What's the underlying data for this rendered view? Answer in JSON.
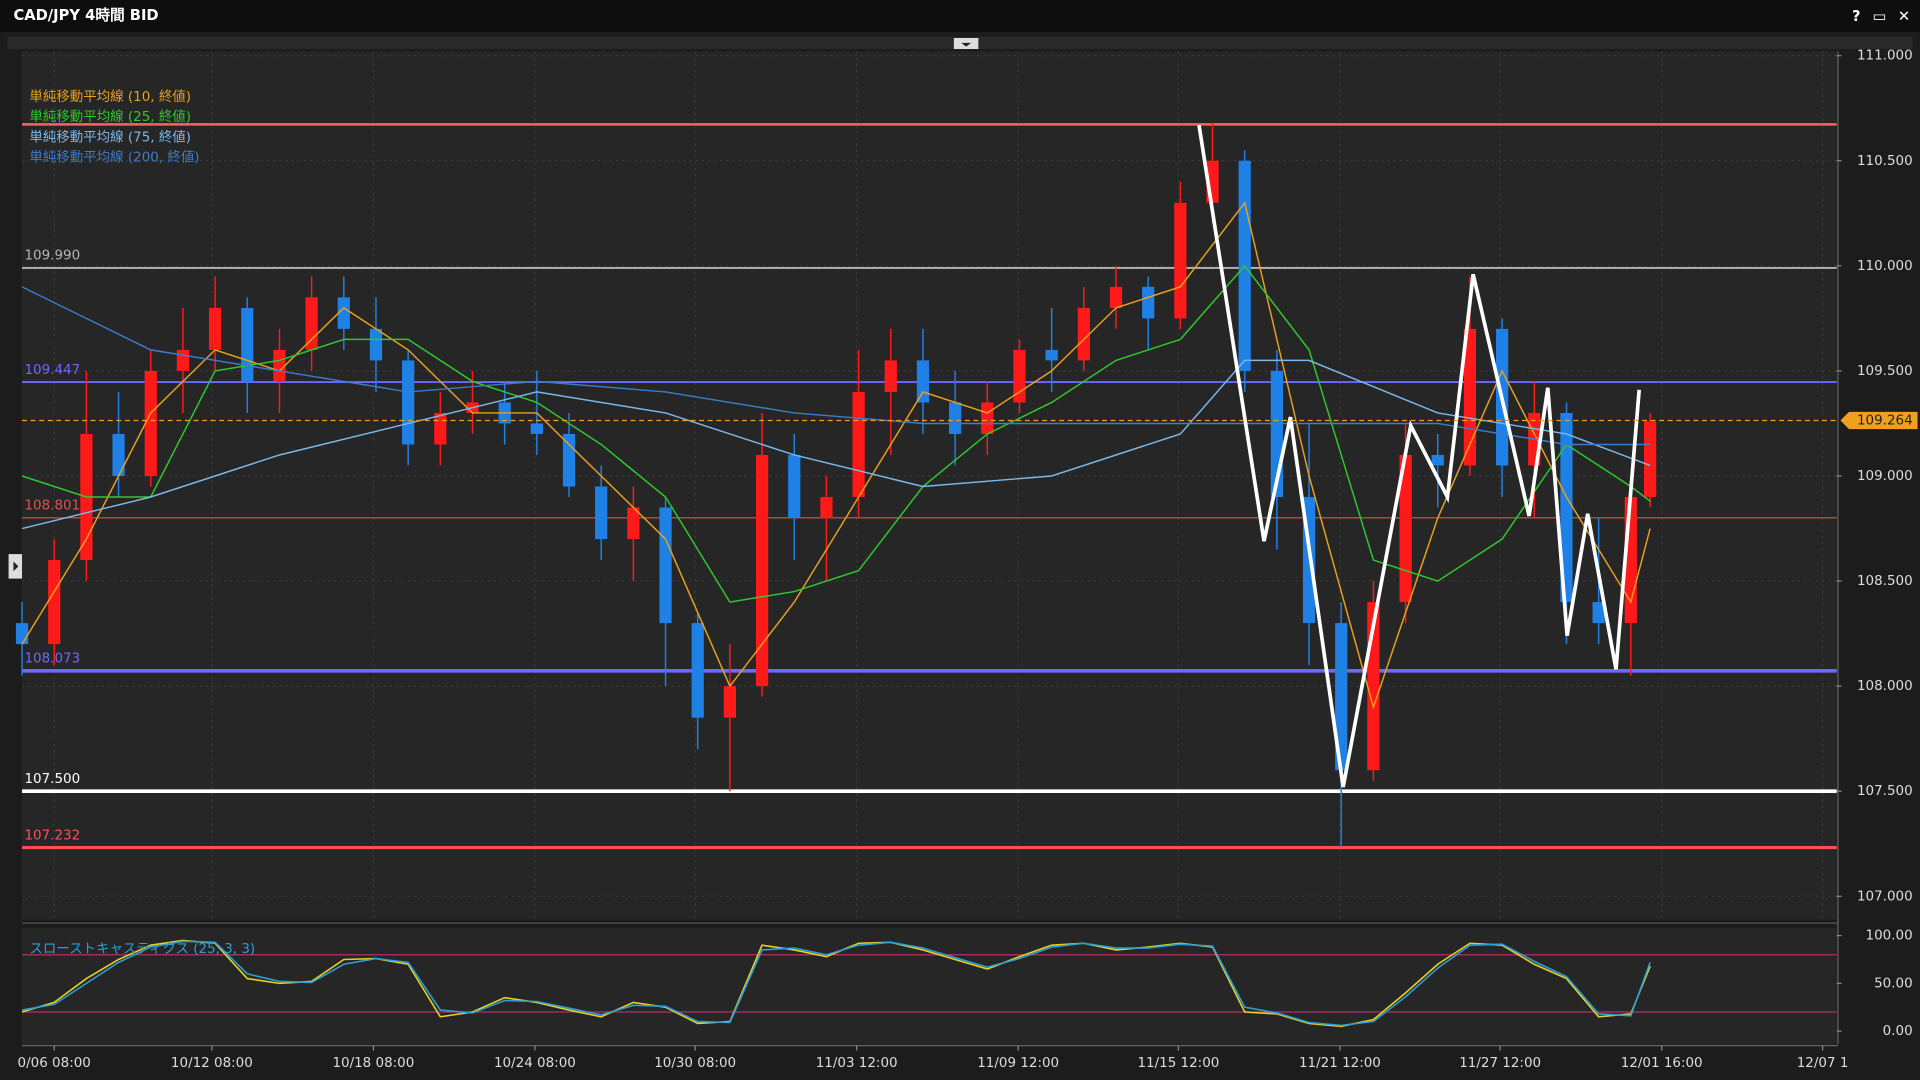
{
  "window": {
    "title": "CAD/JPY 4時間 BID",
    "buttons": [
      "?",
      "▭",
      "✕"
    ]
  },
  "chart_data": [
    {
      "type": "candlestick",
      "xlim": [
        0,
        282
      ],
      "ylim": [
        106.89,
        111.02
      ],
      "grid": true,
      "yticks": [
        {
          "value": 107,
          "label": "107.000"
        },
        {
          "value": 107.5,
          "label": "107.500"
        },
        {
          "value": 108,
          "label": "108.000"
        },
        {
          "value": 108.5,
          "label": "108.500"
        },
        {
          "value": 109,
          "label": "109.000"
        },
        {
          "value": 109.5,
          "label": "109.500"
        },
        {
          "value": 110,
          "label": "110.000"
        },
        {
          "value": 110.5,
          "label": "110.500"
        },
        {
          "value": 111,
          "label": "111.000"
        }
      ],
      "xticks": [
        {
          "value": 5,
          "label": "0/06 08:00"
        },
        {
          "value": 29.5,
          "label": "10/12 08:00"
        },
        {
          "value": 54.6,
          "label": "10/18 08:00"
        },
        {
          "value": 79.7,
          "label": "10/24 08:00"
        },
        {
          "value": 104.6,
          "label": "10/30 08:00"
        },
        {
          "value": 129.7,
          "label": "11/03 12:00"
        },
        {
          "value": 154.8,
          "label": "11/09 12:00"
        },
        {
          "value": 179.7,
          "label": "11/15 12:00"
        },
        {
          "value": 204.8,
          "label": "11/21 12:00"
        },
        {
          "value": 229.7,
          "label": "11/27 12:00"
        },
        {
          "value": 254.8,
          "label": "12/01 16:00"
        },
        {
          "value": 279.8,
          "label": "12/07 1"
        }
      ],
      "up_color": "#ff1a1a",
      "down_color": "#1f80e6",
      "candles": {
        "x": [
          0,
          5,
          10,
          15,
          20,
          25,
          30,
          35,
          40,
          45,
          50,
          55,
          60,
          65,
          70,
          75,
          80,
          85,
          90,
          95,
          100,
          105,
          110,
          115,
          120,
          125,
          130,
          135,
          140,
          145,
          150,
          155,
          160,
          165,
          170,
          175,
          180,
          185,
          190,
          195,
          200,
          205,
          210,
          215,
          220,
          225,
          230,
          235,
          240,
          245,
          250,
          253
        ],
        "open": [
          108.3,
          108.2,
          108.6,
          109.2,
          109.0,
          109.5,
          109.6,
          109.8,
          109.45,
          109.6,
          109.85,
          109.7,
          109.55,
          109.15,
          109.3,
          109.35,
          109.25,
          109.2,
          108.95,
          108.7,
          108.85,
          108.3,
          107.85,
          108.0,
          109.1,
          108.8,
          108.9,
          109.4,
          109.55,
          109.35,
          109.2,
          109.35,
          109.6,
          109.55,
          109.8,
          109.9,
          109.75,
          110.3,
          110.5,
          109.5,
          108.9,
          108.3,
          107.6,
          108.4,
          109.1,
          109.05,
          109.7,
          109.05,
          109.3,
          108.4,
          108.3,
          108.9
        ],
        "high": [
          108.4,
          108.7,
          109.5,
          109.4,
          109.6,
          109.8,
          109.95,
          109.85,
          109.7,
          109.95,
          109.95,
          109.85,
          109.6,
          109.4,
          109.5,
          109.45,
          109.5,
          109.3,
          109.05,
          108.95,
          108.9,
          108.35,
          108.2,
          109.3,
          109.2,
          109.0,
          109.6,
          109.7,
          109.7,
          109.5,
          109.45,
          109.65,
          109.8,
          109.9,
          110.0,
          109.95,
          110.4,
          110.68,
          110.55,
          109.6,
          109.25,
          108.4,
          108.5,
          109.25,
          109.2,
          109.95,
          109.75,
          109.45,
          109.35,
          108.8,
          109.0,
          109.3
        ],
        "low": [
          108.05,
          108.1,
          108.5,
          108.9,
          108.95,
          109.3,
          109.5,
          109.3,
          109.3,
          109.5,
          109.6,
          109.4,
          109.05,
          109.05,
          109.2,
          109.15,
          109.1,
          108.9,
          108.6,
          108.5,
          108.0,
          107.7,
          107.5,
          107.95,
          108.6,
          108.5,
          108.8,
          109.1,
          109.2,
          109.05,
          109.1,
          109.3,
          109.4,
          109.5,
          109.7,
          109.6,
          109.7,
          110.2,
          109.4,
          108.65,
          108.1,
          107.23,
          107.55,
          108.3,
          108.85,
          109.0,
          108.9,
          108.8,
          108.2,
          108.2,
          108.05,
          108.85
        ],
        "close": [
          108.2,
          108.6,
          109.2,
          109.0,
          109.5,
          109.6,
          109.8,
          109.45,
          109.6,
          109.85,
          109.7,
          109.55,
          109.15,
          109.3,
          109.35,
          109.25,
          109.2,
          108.95,
          108.7,
          108.85,
          108.3,
          107.85,
          108.0,
          109.1,
          108.8,
          108.9,
          109.4,
          109.55,
          109.35,
          109.2,
          109.35,
          109.6,
          109.55,
          109.8,
          109.9,
          109.75,
          110.3,
          110.5,
          109.5,
          108.9,
          108.3,
          107.6,
          108.4,
          109.1,
          109.05,
          109.7,
          109.05,
          109.3,
          108.4,
          108.3,
          108.9,
          109.26
        ]
      },
      "series": [
        {
          "name": "単純移動平均線 (10, 終値)",
          "color": "#e8a020",
          "x": [
            0,
            10,
            20,
            30,
            40,
            50,
            60,
            70,
            80,
            90,
            100,
            110,
            120,
            130,
            140,
            150,
            160,
            170,
            180,
            190,
            200,
            210,
            220,
            230,
            240,
            250,
            253
          ],
          "values": [
            108.2,
            108.7,
            109.3,
            109.6,
            109.5,
            109.8,
            109.6,
            109.3,
            109.3,
            109.0,
            108.7,
            108.0,
            108.4,
            108.9,
            109.4,
            109.3,
            109.5,
            109.8,
            109.9,
            110.3,
            109.0,
            107.9,
            108.8,
            109.5,
            108.9,
            108.4,
            108.75
          ]
        },
        {
          "name": "単純移動平均線 (25, 終値)",
          "color": "#2ec82e",
          "x": [
            0,
            10,
            20,
            30,
            40,
            50,
            60,
            70,
            80,
            90,
            100,
            110,
            120,
            130,
            140,
            150,
            160,
            170,
            180,
            190,
            200,
            210,
            220,
            230,
            240,
            250,
            253
          ],
          "values": [
            109.0,
            108.9,
            108.9,
            109.5,
            109.55,
            109.65,
            109.65,
            109.45,
            109.35,
            109.15,
            108.9,
            108.4,
            108.45,
            108.55,
            108.95,
            109.2,
            109.35,
            109.55,
            109.65,
            110.0,
            109.6,
            108.6,
            108.5,
            108.7,
            109.15,
            108.95,
            108.88
          ]
        },
        {
          "name": "単純移動平均線 (75, 終値)",
          "color": "#7ab8e8",
          "x": [
            0,
            20,
            40,
            60,
            80,
            100,
            120,
            140,
            160,
            180,
            190,
            200,
            220,
            240,
            253
          ],
          "values": [
            108.75,
            108.9,
            109.1,
            109.25,
            109.4,
            109.3,
            109.1,
            108.95,
            109.0,
            109.2,
            109.55,
            109.55,
            109.3,
            109.2,
            109.05
          ]
        },
        {
          "name": "単純移動平均線 (200, 終値)",
          "color": "#3a7cc8",
          "x": [
            0,
            20,
            40,
            60,
            80,
            100,
            120,
            140,
            160,
            180,
            200,
            220,
            240,
            253
          ],
          "values": [
            109.9,
            109.6,
            109.5,
            109.4,
            109.45,
            109.4,
            109.3,
            109.25,
            109.25,
            109.25,
            109.25,
            109.25,
            109.15,
            109.15
          ]
        }
      ],
      "drawn_line": {
        "color": "#ffffff",
        "x": [
          182.9,
          193,
          197.1,
          205.3,
          215.8,
          221.5,
          225.5,
          234.2,
          237.1,
          240.1,
          243.3,
          247.7,
          251.3
        ],
        "values": [
          110.67,
          108.69,
          109.28,
          107.52,
          109.24,
          108.9,
          109.96,
          108.81,
          109.42,
          108.24,
          108.82,
          108.08,
          109.41
        ]
      },
      "levels": [
        {
          "value": 110.673,
          "color": "#ff6060",
          "width": 2
        },
        {
          "value": 109.99,
          "label": "109.990",
          "color": "#b4b4b4",
          "width": 1.5
        },
        {
          "value": 109.447,
          "label": "109.447",
          "color": "#6a6aff",
          "width": 1.5
        },
        {
          "value": 108.801,
          "label": "108.801",
          "color": "#e05050",
          "width": 1
        },
        {
          "value": 108.073,
          "label": "108.073",
          "color": "#6a6aff",
          "width": 3
        },
        {
          "value": 107.5,
          "label": "107.500",
          "color": "#ffffff",
          "width": 3
        },
        {
          "value": 107.232,
          "label": "107.232",
          "color": "#ff5050",
          "width": 2.5
        }
      ],
      "last": {
        "value": 109.264,
        "label": "109.264",
        "color": "#f0a020"
      }
    },
    {
      "type": "line",
      "title": "スローストキャスティクス (25, 3, 3)",
      "xlim": [
        0,
        282
      ],
      "ylim": [
        -14,
        108
      ],
      "yticks": [
        {
          "value": 0,
          "label": "0.00"
        },
        {
          "value": 50,
          "label": "50.00"
        },
        {
          "value": 100,
          "label": "100.00"
        }
      ],
      "x": [
        0,
        5,
        10,
        15,
        20,
        25,
        30,
        35,
        40,
        45,
        50,
        55,
        60,
        65,
        70,
        75,
        80,
        85,
        90,
        95,
        100,
        105,
        110,
        115,
        120,
        125,
        130,
        135,
        140,
        145,
        150,
        155,
        160,
        165,
        170,
        175,
        180,
        185,
        190,
        195,
        200,
        205,
        210,
        215,
        220,
        225,
        230,
        235,
        240,
        245,
        250,
        253
      ],
      "series": [
        {
          "color": "#e8d020",
          "values": [
            20,
            30,
            55,
            75,
            90,
            95,
            92,
            55,
            50,
            52,
            75,
            76,
            70,
            15,
            20,
            35,
            30,
            22,
            15,
            30,
            25,
            8,
            10,
            90,
            85,
            78,
            92,
            93,
            85,
            75,
            65,
            78,
            90,
            92,
            85,
            88,
            92,
            88,
            20,
            18,
            8,
            5,
            12,
            40,
            70,
            92,
            90,
            70,
            55,
            15,
            18,
            68
          ]
        },
        {
          "color": "#2a9fd6",
          "values": [
            22,
            28,
            50,
            72,
            88,
            94,
            93,
            60,
            52,
            51,
            70,
            76,
            72,
            22,
            19,
            32,
            31,
            24,
            17,
            27,
            26,
            10,
            9,
            85,
            87,
            80,
            90,
            93,
            87,
            77,
            67,
            76,
            88,
            92,
            87,
            87,
            91,
            89,
            25,
            19,
            9,
            6,
            10,
            36,
            66,
            90,
            91,
            73,
            57,
            18,
            16,
            72
          ]
        }
      ],
      "levels": [
        {
          "value": 80,
          "color": "#b0306a",
          "width": 1
        },
        {
          "value": 20,
          "color": "#b0306a",
          "width": 1
        }
      ]
    }
  ]
}
